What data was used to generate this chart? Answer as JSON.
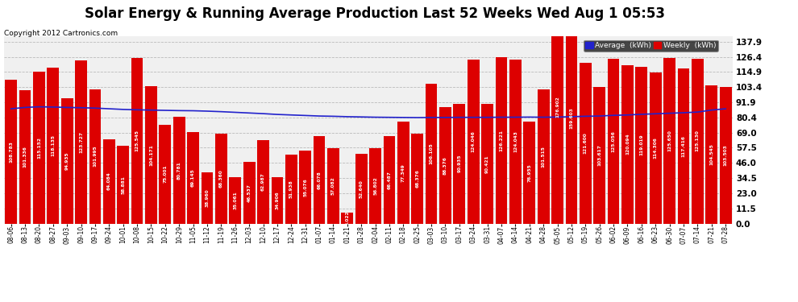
{
  "title": "Solar Energy & Running Average Production Last 52 Weeks Wed Aug 1 05:53",
  "copyright": "Copyright 2012 Cartronics.com",
  "categories": [
    "08-06",
    "08-13",
    "08-20",
    "08-27",
    "09-03",
    "09-10",
    "09-17",
    "09-24",
    "10-01",
    "10-08",
    "10-15",
    "10-22",
    "10-29",
    "11-05",
    "11-12",
    "11-19",
    "11-26",
    "12-03",
    "12-10",
    "12-17",
    "12-24",
    "12-31",
    "01-07",
    "01-14",
    "01-21",
    "01-28",
    "02-04",
    "02-11",
    "02-18",
    "02-25",
    "03-03",
    "03-10",
    "03-17",
    "03-24",
    "03-31",
    "04-07",
    "04-14",
    "04-21",
    "04-28",
    "05-05",
    "05-12",
    "05-19",
    "05-26",
    "06-02",
    "06-09",
    "06-16",
    "06-23",
    "06-30",
    "07-07",
    "07-14",
    "07-21",
    "07-28"
  ],
  "weekly_values": [
    108.783,
    101.336,
    115.152,
    118.135,
    94.935,
    123.727,
    101.995,
    64.084,
    58.881,
    125.545,
    104.171,
    75.001,
    80.781,
    69.145,
    38.96,
    68.36,
    35.061,
    46.537,
    62.987,
    34.906,
    51.938,
    55.076,
    66.078,
    57.082,
    8.022,
    52.64,
    56.802,
    66.487,
    77.349,
    68.376,
    106.105,
    88.376,
    90.935,
    124.046,
    90.421,
    126.221,
    124.043,
    76.955,
    101.515,
    176.902,
    159.603,
    121.6,
    103.617,
    125.056,
    120.094,
    119.019,
    114.306,
    125.65,
    117.416,
    125.13,
    104.545,
    103.503
  ],
  "average_values": [
    87.0,
    88.0,
    88.5,
    88.3,
    88.0,
    87.8,
    87.5,
    87.0,
    86.5,
    86.2,
    86.0,
    85.8,
    85.6,
    85.5,
    85.2,
    84.8,
    84.3,
    83.8,
    83.3,
    82.7,
    82.3,
    81.9,
    81.5,
    81.3,
    81.0,
    80.8,
    80.6,
    80.5,
    80.4,
    80.3,
    80.4,
    80.4,
    80.5,
    80.5,
    80.5,
    80.6,
    80.6,
    80.7,
    80.6,
    80.7,
    81.0,
    81.3,
    81.5,
    82.0,
    82.3,
    82.8,
    83.2,
    83.6,
    84.0,
    84.5,
    86.0,
    87.0
  ],
  "bar_color": "#dd0000",
  "line_color": "#2222cc",
  "background_color": "#ffffff",
  "plot_bg_color": "#f0f0f0",
  "yticks": [
    0.0,
    11.5,
    23.0,
    34.5,
    46.0,
    57.5,
    69.0,
    80.4,
    91.9,
    103.4,
    114.9,
    126.4,
    137.9
  ],
  "ymax": 142.0,
  "grid_color": "#bbbbbb",
  "legend_avg_color": "#2222cc",
  "legend_weekly_color": "#dd0000",
  "title_fontsize": 12,
  "copyright_fontsize": 6.5,
  "bar_label_fontsize": 4.2,
  "tick_fontsize": 7.5,
  "xtick_fontsize": 5.5
}
